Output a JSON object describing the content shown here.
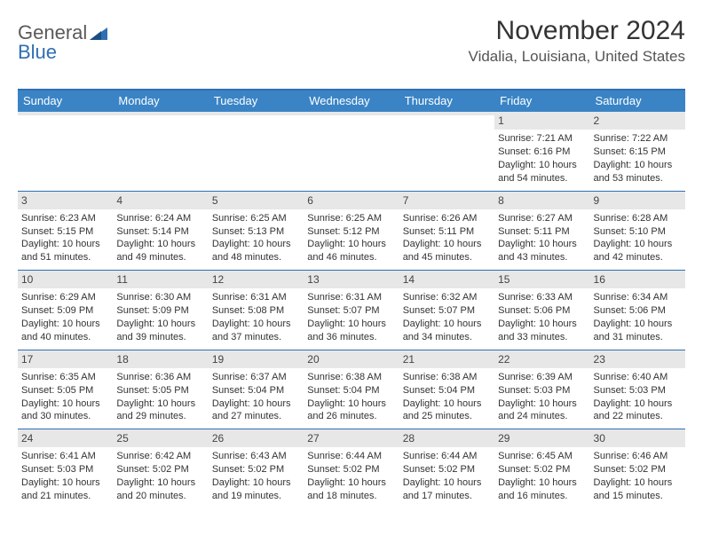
{
  "logo": {
    "general": "General",
    "blue": "Blue"
  },
  "header": {
    "month_title": "November 2024",
    "location": "Vidalia, Louisiana, United States"
  },
  "colors": {
    "header_bg": "#3a84c6",
    "border": "#2f6fb3",
    "daynum_bg": "#e7e7e7",
    "text": "#333333",
    "logo_gray": "#5a5a5a",
    "logo_blue": "#2f6fb3"
  },
  "day_names": [
    "Sunday",
    "Monday",
    "Tuesday",
    "Wednesday",
    "Thursday",
    "Friday",
    "Saturday"
  ],
  "weeks": [
    [
      {
        "n": "",
        "sr": "",
        "ss": "",
        "dl": ""
      },
      {
        "n": "",
        "sr": "",
        "ss": "",
        "dl": ""
      },
      {
        "n": "",
        "sr": "",
        "ss": "",
        "dl": ""
      },
      {
        "n": "",
        "sr": "",
        "ss": "",
        "dl": ""
      },
      {
        "n": "",
        "sr": "",
        "ss": "",
        "dl": ""
      },
      {
        "n": "1",
        "sr": "Sunrise: 7:21 AM",
        "ss": "Sunset: 6:16 PM",
        "dl": "Daylight: 10 hours and 54 minutes."
      },
      {
        "n": "2",
        "sr": "Sunrise: 7:22 AM",
        "ss": "Sunset: 6:15 PM",
        "dl": "Daylight: 10 hours and 53 minutes."
      }
    ],
    [
      {
        "n": "3",
        "sr": "Sunrise: 6:23 AM",
        "ss": "Sunset: 5:15 PM",
        "dl": "Daylight: 10 hours and 51 minutes."
      },
      {
        "n": "4",
        "sr": "Sunrise: 6:24 AM",
        "ss": "Sunset: 5:14 PM",
        "dl": "Daylight: 10 hours and 49 minutes."
      },
      {
        "n": "5",
        "sr": "Sunrise: 6:25 AM",
        "ss": "Sunset: 5:13 PM",
        "dl": "Daylight: 10 hours and 48 minutes."
      },
      {
        "n": "6",
        "sr": "Sunrise: 6:25 AM",
        "ss": "Sunset: 5:12 PM",
        "dl": "Daylight: 10 hours and 46 minutes."
      },
      {
        "n": "7",
        "sr": "Sunrise: 6:26 AM",
        "ss": "Sunset: 5:11 PM",
        "dl": "Daylight: 10 hours and 45 minutes."
      },
      {
        "n": "8",
        "sr": "Sunrise: 6:27 AM",
        "ss": "Sunset: 5:11 PM",
        "dl": "Daylight: 10 hours and 43 minutes."
      },
      {
        "n": "9",
        "sr": "Sunrise: 6:28 AM",
        "ss": "Sunset: 5:10 PM",
        "dl": "Daylight: 10 hours and 42 minutes."
      }
    ],
    [
      {
        "n": "10",
        "sr": "Sunrise: 6:29 AM",
        "ss": "Sunset: 5:09 PM",
        "dl": "Daylight: 10 hours and 40 minutes."
      },
      {
        "n": "11",
        "sr": "Sunrise: 6:30 AM",
        "ss": "Sunset: 5:09 PM",
        "dl": "Daylight: 10 hours and 39 minutes."
      },
      {
        "n": "12",
        "sr": "Sunrise: 6:31 AM",
        "ss": "Sunset: 5:08 PM",
        "dl": "Daylight: 10 hours and 37 minutes."
      },
      {
        "n": "13",
        "sr": "Sunrise: 6:31 AM",
        "ss": "Sunset: 5:07 PM",
        "dl": "Daylight: 10 hours and 36 minutes."
      },
      {
        "n": "14",
        "sr": "Sunrise: 6:32 AM",
        "ss": "Sunset: 5:07 PM",
        "dl": "Daylight: 10 hours and 34 minutes."
      },
      {
        "n": "15",
        "sr": "Sunrise: 6:33 AM",
        "ss": "Sunset: 5:06 PM",
        "dl": "Daylight: 10 hours and 33 minutes."
      },
      {
        "n": "16",
        "sr": "Sunrise: 6:34 AM",
        "ss": "Sunset: 5:06 PM",
        "dl": "Daylight: 10 hours and 31 minutes."
      }
    ],
    [
      {
        "n": "17",
        "sr": "Sunrise: 6:35 AM",
        "ss": "Sunset: 5:05 PM",
        "dl": "Daylight: 10 hours and 30 minutes."
      },
      {
        "n": "18",
        "sr": "Sunrise: 6:36 AM",
        "ss": "Sunset: 5:05 PM",
        "dl": "Daylight: 10 hours and 29 minutes."
      },
      {
        "n": "19",
        "sr": "Sunrise: 6:37 AM",
        "ss": "Sunset: 5:04 PM",
        "dl": "Daylight: 10 hours and 27 minutes."
      },
      {
        "n": "20",
        "sr": "Sunrise: 6:38 AM",
        "ss": "Sunset: 5:04 PM",
        "dl": "Daylight: 10 hours and 26 minutes."
      },
      {
        "n": "21",
        "sr": "Sunrise: 6:38 AM",
        "ss": "Sunset: 5:04 PM",
        "dl": "Daylight: 10 hours and 25 minutes."
      },
      {
        "n": "22",
        "sr": "Sunrise: 6:39 AM",
        "ss": "Sunset: 5:03 PM",
        "dl": "Daylight: 10 hours and 24 minutes."
      },
      {
        "n": "23",
        "sr": "Sunrise: 6:40 AM",
        "ss": "Sunset: 5:03 PM",
        "dl": "Daylight: 10 hours and 22 minutes."
      }
    ],
    [
      {
        "n": "24",
        "sr": "Sunrise: 6:41 AM",
        "ss": "Sunset: 5:03 PM",
        "dl": "Daylight: 10 hours and 21 minutes."
      },
      {
        "n": "25",
        "sr": "Sunrise: 6:42 AM",
        "ss": "Sunset: 5:02 PM",
        "dl": "Daylight: 10 hours and 20 minutes."
      },
      {
        "n": "26",
        "sr": "Sunrise: 6:43 AM",
        "ss": "Sunset: 5:02 PM",
        "dl": "Daylight: 10 hours and 19 minutes."
      },
      {
        "n": "27",
        "sr": "Sunrise: 6:44 AM",
        "ss": "Sunset: 5:02 PM",
        "dl": "Daylight: 10 hours and 18 minutes."
      },
      {
        "n": "28",
        "sr": "Sunrise: 6:44 AM",
        "ss": "Sunset: 5:02 PM",
        "dl": "Daylight: 10 hours and 17 minutes."
      },
      {
        "n": "29",
        "sr": "Sunrise: 6:45 AM",
        "ss": "Sunset: 5:02 PM",
        "dl": "Daylight: 10 hours and 16 minutes."
      },
      {
        "n": "30",
        "sr": "Sunrise: 6:46 AM",
        "ss": "Sunset: 5:02 PM",
        "dl": "Daylight: 10 hours and 15 minutes."
      }
    ]
  ]
}
